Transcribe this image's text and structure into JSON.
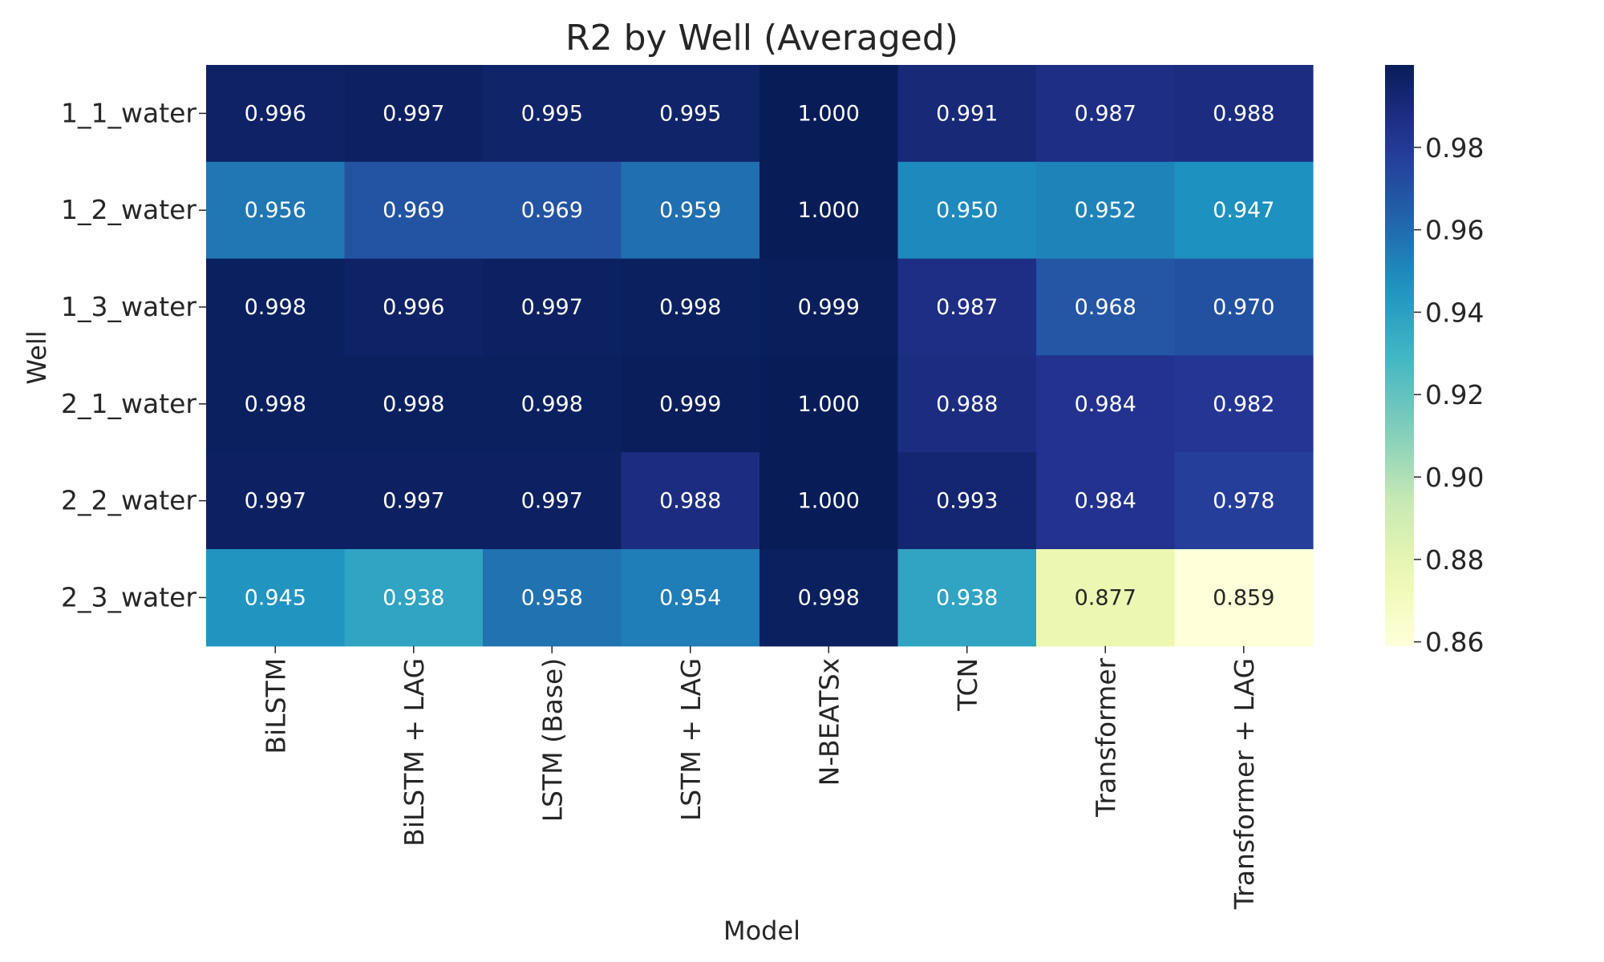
{
  "chart_data": {
    "type": "heatmap",
    "title": "R2 by Well (Averaged)",
    "xlabel": "Model",
    "ylabel": "Well",
    "x_categories": [
      "BiLSTM",
      "BiLSTM + LAG",
      "LSTM (Base)",
      "LSTM + LAG",
      "N-BEATSx",
      "TCN",
      "Transformer",
      "Transformer + LAG"
    ],
    "y_categories": [
      "1_1_water",
      "1_2_water",
      "1_3_water",
      "2_1_water",
      "2_2_water",
      "2_3_water"
    ],
    "values": [
      [
        0.996,
        0.997,
        0.995,
        0.995,
        1.0,
        0.991,
        0.987,
        0.988
      ],
      [
        0.956,
        0.969,
        0.969,
        0.959,
        1.0,
        0.95,
        0.952,
        0.947
      ],
      [
        0.998,
        0.996,
        0.997,
        0.998,
        0.999,
        0.987,
        0.968,
        0.97
      ],
      [
        0.998,
        0.998,
        0.998,
        0.999,
        1.0,
        0.988,
        0.984,
        0.982
      ],
      [
        0.997,
        0.997,
        0.997,
        0.988,
        1.0,
        0.993,
        0.984,
        0.978
      ],
      [
        0.945,
        0.938,
        0.958,
        0.954,
        0.998,
        0.938,
        0.877,
        0.859
      ]
    ],
    "value_format": "0.000",
    "colormap": "YlGnBu",
    "vmin": 0.859,
    "vmax": 1.0,
    "colorbar_ticks": [
      "0.86",
      "0.88",
      "0.90",
      "0.92",
      "0.94",
      "0.96",
      "0.98"
    ],
    "colorbar_tick_values": [
      0.86,
      0.88,
      0.9,
      0.92,
      0.94,
      0.96,
      0.98
    ],
    "x_tick_rotation": "vertical",
    "grid": false
  }
}
